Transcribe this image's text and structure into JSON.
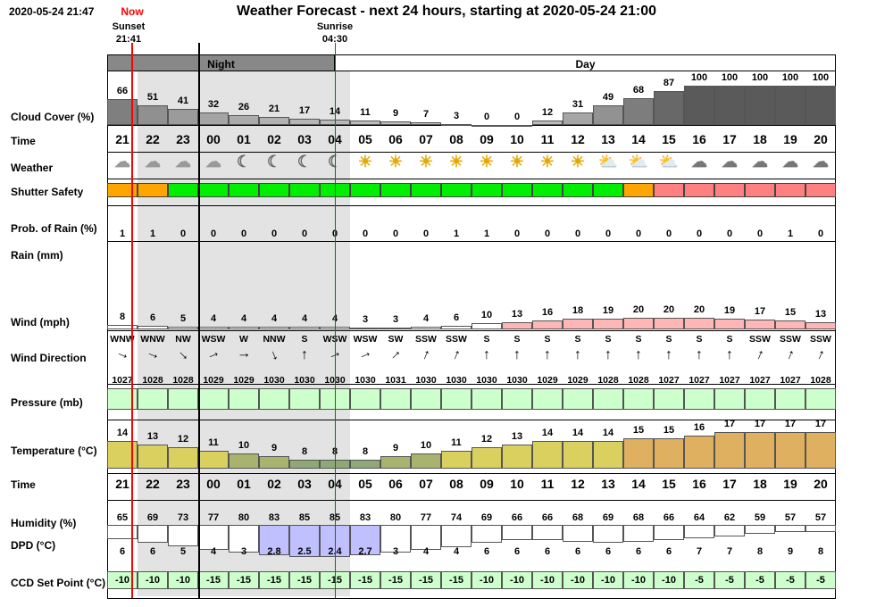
{
  "header": {
    "timestamp": "2020-05-24 21:47",
    "now_label": "Now",
    "title": "Weather Forecast - next 24 hours, starting at 2020-05-24 21:00",
    "sunset_label": "Sunset",
    "sunset_time": "21:41",
    "sunrise_label": "Sunrise",
    "sunrise_time": "04:30"
  },
  "period_labels": {
    "night": "Night",
    "day": "Day"
  },
  "row_labels": {
    "cloud": "Cloud Cover (%)",
    "time": "Time",
    "weather": "Weather",
    "shutter": "Shutter Safety",
    "prob_rain": "Prob. of Rain (%)",
    "rain": "Rain (mm)",
    "wind": "Wind (mph)",
    "wind_dir": "Wind Direction",
    "pressure": "Pressure (mb)",
    "temperature": "Temperature (°C)",
    "time2": "Time",
    "humidity": "Humidity (%)",
    "dpd": "DPD (°C)",
    "ccd": "CCD Set Point (°C)"
  },
  "hours": [
    "21",
    "22",
    "23",
    "00",
    "01",
    "02",
    "03",
    "04",
    "05",
    "06",
    "07",
    "08",
    "09",
    "10",
    "11",
    "12",
    "13",
    "14",
    "15",
    "16",
    "17",
    "18",
    "19",
    "20"
  ],
  "cloud_cover": [
    66,
    51,
    41,
    32,
    26,
    21,
    17,
    14,
    11,
    9,
    7,
    3,
    0,
    0,
    12,
    31,
    49,
    68,
    87,
    100,
    100,
    100,
    100,
    100
  ],
  "weather_icons": [
    "partly-cloudy-night-icon",
    "partly-cloudy-night-icon",
    "partly-cloudy-night-icon",
    "partly-cloudy-night-icon",
    "moon-icon",
    "moon-icon",
    "moon-icon",
    "moon-icon",
    "sun-icon",
    "sun-icon",
    "sun-icon",
    "sun-icon",
    "sun-icon",
    "sun-icon",
    "sun-icon",
    "sun-icon",
    "partly-cloudy-day-icon",
    "partly-cloudy-day-icon",
    "partly-cloudy-day-icon",
    "cloud-icon",
    "cloud-icon",
    "cloud-icon",
    "cloud-icon",
    "cloud-icon"
  ],
  "shutter_safety": [
    "orange",
    "orange",
    "green",
    "green",
    "green",
    "green",
    "green",
    "green",
    "green",
    "green",
    "green",
    "green",
    "green",
    "green",
    "green",
    "green",
    "green",
    "orange",
    "red",
    "red",
    "red",
    "red",
    "red",
    "red"
  ],
  "shutter_colors": {
    "orange": "#ffa500",
    "green": "#00ee00",
    "red": "#ff8080"
  },
  "prob_rain": [
    1,
    1,
    0,
    0,
    0,
    0,
    0,
    0,
    0,
    0,
    0,
    1,
    1,
    0,
    0,
    0,
    0,
    0,
    0,
    0,
    0,
    0,
    1,
    0
  ],
  "wind_speed": [
    8,
    6,
    5,
    4,
    4,
    4,
    4,
    4,
    3,
    3,
    4,
    6,
    10,
    13,
    16,
    18,
    19,
    20,
    20,
    20,
    19,
    17,
    15,
    13
  ],
  "wind_direction": [
    "WNW",
    "WNW",
    "NW",
    "WSW",
    "W",
    "NNW",
    "S",
    "WSW",
    "WSW",
    "SW",
    "SSW",
    "SSW",
    "S",
    "S",
    "S",
    "S",
    "S",
    "S",
    "S",
    "S",
    "S",
    "SSW",
    "SSW",
    "SSW"
  ],
  "pressure": [
    1027,
    1028,
    1028,
    1029,
    1029,
    1030,
    1030,
    1030,
    1030,
    1031,
    1030,
    1030,
    1030,
    1030,
    1029,
    1029,
    1028,
    1028,
    1027,
    1027,
    1027,
    1027,
    1027,
    1028
  ],
  "temperature": [
    14,
    13,
    12,
    11,
    10,
    9,
    8,
    8,
    8,
    9,
    10,
    11,
    12,
    13,
    14,
    14,
    14,
    15,
    15,
    16,
    17,
    17,
    17,
    17
  ],
  "humidity": [
    65,
    69,
    73,
    77,
    80,
    83,
    85,
    85,
    83,
    80,
    77,
    74,
    69,
    66,
    66,
    68,
    69,
    68,
    66,
    64,
    62,
    59,
    57,
    57
  ],
  "dpd": [
    "6",
    "6",
    "5",
    "4",
    "3",
    "2.8",
    "2.5",
    "2.4",
    "2.7",
    "3",
    "4",
    "4",
    "6",
    "6",
    "6",
    "6",
    "6",
    "6",
    "6",
    "7",
    "7",
    "8",
    "9",
    "8"
  ],
  "ccd_set_point": [
    -10,
    -10,
    -10,
    -15,
    -15,
    -15,
    -15,
    -15,
    -15,
    -15,
    -15,
    -15,
    -10,
    -10,
    -10,
    -10,
    -10,
    -10,
    -10,
    -5,
    -5,
    -5,
    -5,
    -5
  ],
  "colors": {
    "now_line": "#ff0000",
    "night_band": "#888888",
    "night_shade": "#e3e3e3",
    "sunrise_line": "#008000",
    "grid_line": "#008000",
    "pressure_fill": "#ccffcc",
    "ccd_fill": "#ccffcc",
    "wind_high": "#ffb6b6",
    "humidity_high": "#c0c0ff"
  }
}
